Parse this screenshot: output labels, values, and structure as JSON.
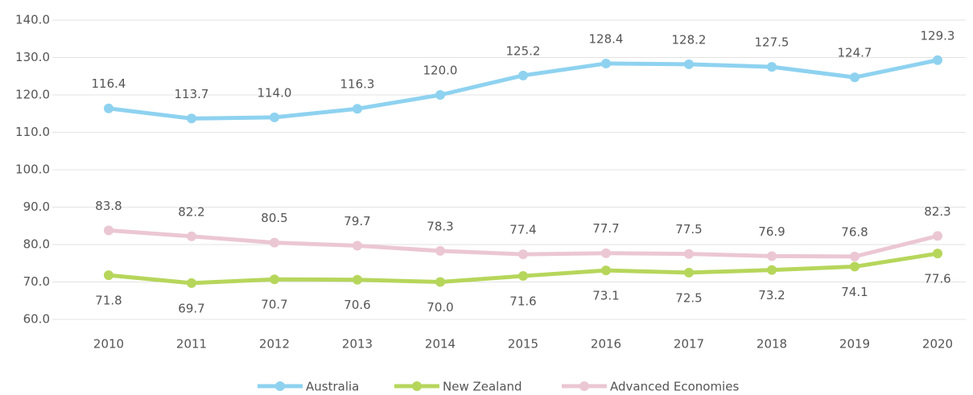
{
  "chart_data": {
    "type": "line",
    "categories": [
      "2010",
      "2011",
      "2012",
      "2013",
      "2014",
      "2015",
      "2016",
      "2017",
      "2018",
      "2019",
      "2020"
    ],
    "series": [
      {
        "name": "Australia",
        "color": "#8ed2f0",
        "values": [
          116.4,
          113.7,
          114.0,
          116.3,
          120.0,
          125.2,
          128.4,
          128.2,
          127.5,
          124.7,
          129.3
        ],
        "value_labels": [
          "116.4",
          "113.7",
          "114.0",
          "116.3",
          "120.0",
          "125.2",
          "128.4",
          "128.2",
          "127.5",
          "124.7",
          "129.3"
        ]
      },
      {
        "name": "New Zealand",
        "color": "#b6d65b",
        "values": [
          71.8,
          69.7,
          70.7,
          70.6,
          70.0,
          71.6,
          73.1,
          72.5,
          73.2,
          74.1,
          77.6
        ],
        "value_labels": [
          "71.8",
          "69.7",
          "70.7",
          "70.6",
          "70.0",
          "71.6",
          "73.1",
          "72.5",
          "73.2",
          "74.1",
          "77.6"
        ]
      },
      {
        "name": "Advanced Economies",
        "color": "#ebc7d3",
        "values": [
          83.8,
          82.2,
          80.5,
          79.7,
          78.3,
          77.4,
          77.7,
          77.5,
          76.9,
          76.8,
          82.3
        ],
        "value_labels": [
          "83.8",
          "82.2",
          "80.5",
          "79.7",
          "78.3",
          "77.4",
          "77.7",
          "77.5",
          "76.9",
          "76.8",
          "82.3"
        ]
      }
    ],
    "ylim": [
      60,
      140
    ],
    "yticks": [
      {
        "value": 60,
        "label": "60.0"
      },
      {
        "value": 70,
        "label": "70.0"
      },
      {
        "value": 80,
        "label": "80.0"
      },
      {
        "value": 90,
        "label": "90.0"
      },
      {
        "value": 100,
        "label": "100.0"
      },
      {
        "value": 110,
        "label": "110.0"
      },
      {
        "value": 120,
        "label": "120.0"
      },
      {
        "value": 130,
        "label": "130.0"
      },
      {
        "value": 140,
        "label": "140.0"
      }
    ],
    "grid": true,
    "legend": "bottom"
  }
}
